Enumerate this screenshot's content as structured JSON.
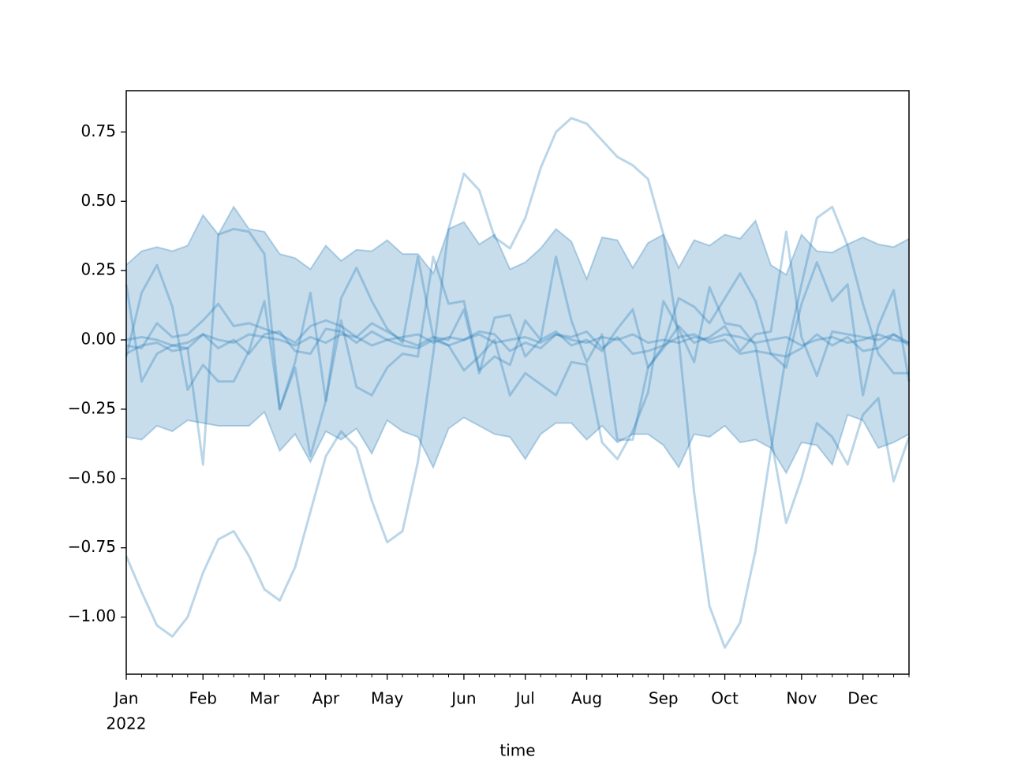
{
  "chart_data": {
    "type": "line",
    "xlabel": "time",
    "x_year_label": "2022",
    "x": [
      0,
      1,
      2,
      3,
      4,
      5,
      6,
      7,
      8,
      9,
      10,
      11,
      12,
      13,
      14,
      15,
      16,
      17,
      18,
      19,
      20,
      21,
      22,
      23,
      24,
      25,
      26,
      27,
      28,
      29,
      30,
      31,
      32,
      33,
      34,
      35,
      36,
      37,
      38,
      39,
      40,
      41,
      42,
      43,
      44,
      45,
      46,
      47,
      48,
      49,
      50,
      51
    ],
    "xlim": [
      0,
      51
    ],
    "xticks": [
      {
        "value": 0,
        "label": "Jan"
      },
      {
        "value": 5,
        "label": "Feb"
      },
      {
        "value": 9,
        "label": "Mar"
      },
      {
        "value": 13,
        "label": "Apr"
      },
      {
        "value": 17,
        "label": "May"
      },
      {
        "value": 22,
        "label": "Jun"
      },
      {
        "value": 26,
        "label": "Jul"
      },
      {
        "value": 30,
        "label": "Aug"
      },
      {
        "value": 35,
        "label": "Sep"
      },
      {
        "value": 39,
        "label": "Oct"
      },
      {
        "value": 44,
        "label": "Nov"
      },
      {
        "value": 48,
        "label": "Dec"
      }
    ],
    "x_minor_ticks": true,
    "ylim": [
      -1.206,
      0.899
    ],
    "yticks": [
      {
        "value": -1,
        "label": "−1.00"
      },
      {
        "value": -0.75,
        "label": "−0.75"
      },
      {
        "value": -0.5,
        "label": "−0.50"
      },
      {
        "value": -0.25,
        "label": "−0.25"
      },
      {
        "value": 0,
        "label": "0.00"
      },
      {
        "value": 0.25,
        "label": "0.25"
      },
      {
        "value": 0.5,
        "label": "0.50"
      },
      {
        "value": 0.75,
        "label": "0.75"
      }
    ],
    "color": "#1f77b4",
    "line_alpha": 0.3,
    "band_alpha": 0.25,
    "band": {
      "upper": [
        0.27,
        0.32,
        0.335,
        0.32,
        0.34,
        0.45,
        0.38,
        0.48,
        0.4,
        0.39,
        0.31,
        0.295,
        0.255,
        0.34,
        0.285,
        0.325,
        0.32,
        0.36,
        0.31,
        0.31,
        0.24,
        0.4,
        0.425,
        0.345,
        0.38,
        0.255,
        0.28,
        0.33,
        0.4,
        0.355,
        0.22,
        0.37,
        0.36,
        0.26,
        0.35,
        0.38,
        0.26,
        0.36,
        0.34,
        0.38,
        0.365,
        0.43,
        0.27,
        0.235,
        0.38,
        0.32,
        0.315,
        0.345,
        0.37,
        0.345,
        0.335,
        0.365
      ],
      "lower": [
        -0.35,
        -0.36,
        -0.31,
        -0.33,
        -0.29,
        -0.3,
        -0.31,
        -0.31,
        -0.31,
        -0.26,
        -0.4,
        -0.34,
        -0.44,
        -0.33,
        -0.36,
        -0.32,
        -0.41,
        -0.29,
        -0.33,
        -0.35,
        -0.46,
        -0.32,
        -0.28,
        -0.31,
        -0.34,
        -0.35,
        -0.43,
        -0.34,
        -0.3,
        -0.3,
        -0.36,
        -0.31,
        -0.37,
        -0.34,
        -0.34,
        -0.38,
        -0.46,
        -0.34,
        -0.35,
        -0.31,
        -0.37,
        -0.36,
        -0.39,
        -0.48,
        -0.37,
        -0.38,
        -0.45,
        -0.27,
        -0.29,
        -0.39,
        -0.37,
        -0.34
      ]
    },
    "series": [
      {
        "values": [
          -0.78,
          -0.91,
          -1.03,
          -1.07,
          -1.0,
          -0.84,
          -0.72,
          -0.69,
          -0.78,
          -0.9,
          -0.94,
          -0.82,
          -0.62,
          -0.42,
          -0.33,
          -0.39,
          -0.58,
          -0.73,
          -0.69,
          -0.44,
          -0.05,
          0.4,
          0.6,
          0.54,
          0.37,
          0.33,
          0.44,
          0.62,
          0.75,
          0.8,
          0.78,
          0.72,
          0.66,
          0.63,
          0.58,
          0.38,
          0.0,
          -0.55,
          -0.96,
          -1.11,
          -1.02,
          -0.76,
          -0.4,
          -0.05,
          0.2,
          0.44,
          0.48,
          0.34,
          0.13,
          -0.05,
          -0.12,
          -0.12
        ]
      },
      {
        "values": [
          0.2,
          -0.15,
          -0.05,
          -0.02,
          -0.03,
          -0.45,
          0.38,
          0.4,
          0.39,
          0.31,
          -0.25,
          -0.1,
          -0.42,
          -0.22,
          0.15,
          0.26,
          0.14,
          0.04,
          -0.01,
          0.3,
          0.01,
          -0.02,
          -0.11,
          -0.06,
          0.0,
          -0.2,
          -0.12,
          -0.16,
          -0.2,
          -0.08,
          -0.09,
          -0.37,
          -0.43,
          -0.33,
          -0.19,
          0.14,
          0.04,
          -0.08,
          0.19,
          0.06,
          0.05,
          -0.02,
          -0.35,
          -0.66,
          -0.5,
          -0.3,
          -0.35,
          -0.45,
          -0.27,
          -0.21,
          -0.51,
          -0.35
        ]
      },
      {
        "values": [
          -0.06,
          0.17,
          0.27,
          0.12,
          -0.18,
          -0.09,
          -0.15,
          -0.15,
          -0.04,
          0.14,
          -0.25,
          -0.08,
          0.17,
          -0.22,
          0.07,
          -0.17,
          -0.2,
          -0.1,
          -0.05,
          -0.06,
          0.3,
          0.13,
          0.14,
          -0.11,
          -0.06,
          -0.09,
          0.07,
          0.0,
          0.3,
          0.07,
          -0.08,
          0.02,
          -0.36,
          -0.36,
          -0.1,
          -0.02,
          0.15,
          0.12,
          0.06,
          0.15,
          0.24,
          0.14,
          -0.05,
          -0.1,
          0.13,
          0.28,
          0.14,
          0.2,
          -0.2,
          0.05,
          0.18,
          -0.15
        ]
      },
      {
        "values": [
          -0.02,
          -0.03,
          0.06,
          0.01,
          0.02,
          0.07,
          0.13,
          0.05,
          0.06,
          0.04,
          0.02,
          -0.01,
          0.05,
          0.07,
          0.05,
          0.01,
          0.06,
          0.03,
          0.0,
          -0.02,
          0.01,
          0.0,
          0.11,
          -0.12,
          0.08,
          0.09,
          -0.06,
          0.0,
          0.03,
          -0.02,
          0.0,
          -0.04,
          0.04,
          0.11,
          -0.1,
          -0.03,
          0.05,
          -0.01,
          0.01,
          0.05,
          -0.04,
          0.02,
          0.03,
          0.39,
          0.01,
          -0.13,
          0.03,
          0.02,
          0.01,
          0.0,
          0.02,
          -0.02
        ]
      },
      {
        "values": [
          0,
          0.01,
          0,
          -0.02,
          -0.01,
          0.02,
          0,
          -0.01,
          0.02,
          0.01,
          0,
          -0.02,
          0.01,
          -0.01,
          0.02,
          0.01,
          -0.02,
          0,
          0.01,
          0.02,
          -0.01,
          0.01,
          0,
          0.02,
          -0.01,
          0,
          0.01,
          -0.01,
          0.02,
          0,
          -0.01,
          0.01,
          0,
          0.02,
          -0.01,
          0,
          -0.01,
          0.01,
          0,
          0.02,
          0.01,
          -0.01,
          0,
          0.01,
          -0.02,
          0,
          0.01,
          -0.01,
          0,
          0.02,
          0,
          -0.01
        ]
      },
      {
        "values": [
          -0.05,
          -0.02,
          -0.01,
          -0.04,
          -0.03,
          0.02,
          -0.03,
          0,
          -0.05,
          0.02,
          0.03,
          -0.04,
          -0.05,
          0.04,
          0.03,
          -0.01,
          0.03,
          0,
          -0.02,
          -0.03,
          0,
          -0.02,
          0,
          0.03,
          0.02,
          -0.04,
          -0.01,
          -0.03,
          0.02,
          0.01,
          0.03,
          -0.03,
          0.01,
          -0.05,
          -0.04,
          -0.02,
          0.01,
          0.02,
          -0.01,
          0,
          -0.05,
          -0.04,
          -0.05,
          -0.06,
          -0.03,
          0.02,
          -0.02,
          0.01,
          -0.04,
          -0.03,
          0.02,
          -0.01
        ]
      }
    ]
  }
}
